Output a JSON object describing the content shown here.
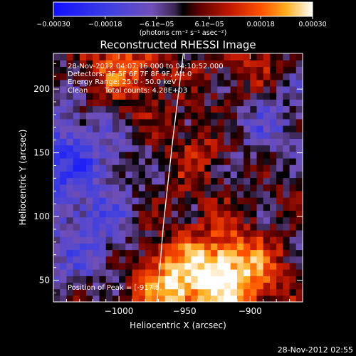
{
  "chart_data": {
    "type": "heatmap",
    "title": "Reconstructed RHESSI Image",
    "xlabel": "Heliocentric X (arcsec)",
    "ylabel": "Heliocentric Y (arcsec)",
    "xlim": [
      -1050,
      -860
    ],
    "ylim": [
      33,
      228
    ],
    "x_ticks": [
      -1000,
      -950,
      -900
    ],
    "x_tick_labels": [
      "−1000",
      "−950",
      "−900"
    ],
    "y_ticks": [
      50,
      100,
      150,
      200
    ],
    "y_tick_labels": [
      "50",
      "100",
      "150",
      "200"
    ],
    "colorbar": {
      "colormap": "hot-blue-purple",
      "range": [
        -0.0003,
        0.0003
      ],
      "ticks": [
        -0.0003,
        -0.00018,
        -6.1e-05,
        6.1e-05,
        0.00018,
        0.0003
      ],
      "tick_labels": [
        "−0.00030",
        "−0.00018",
        "−6.1e−05",
        "6.1e−05",
        "0.00018",
        "0.00030"
      ],
      "unit_label": "(photons cm⁻² s⁻¹ asec⁻²)",
      "stops": [
        {
          "v": 0.0,
          "color": "#1010ff"
        },
        {
          "v": 0.22,
          "color": "#4040e0"
        },
        {
          "v": 0.38,
          "color": "#7050b8"
        },
        {
          "v": 0.47,
          "color": "#3a2650"
        },
        {
          "v": 0.5,
          "color": "#000000"
        },
        {
          "v": 0.56,
          "color": "#5a0000"
        },
        {
          "v": 0.68,
          "color": "#c01800"
        },
        {
          "v": 0.8,
          "color": "#ff5000"
        },
        {
          "v": 0.9,
          "color": "#ffb020"
        },
        {
          "v": 1.0,
          "color": "#ffffff"
        }
      ]
    },
    "annotations": {
      "time_range": "28-Nov-2012 04:07:16.000 to 04:10:52.000",
      "detectors": "Detectors: 3F 5F 6F 7F 8F 9F, Att 0",
      "energy": "Energy Range: 25.0 - 50.0 keV",
      "algorithm": "Clean",
      "counts": "Total counts: 4.28E+03",
      "peak": "Position of Peak = [-917.5,"
    },
    "limb_line": [
      {
        "x": -971,
        "y": 33
      },
      {
        "x": -966,
        "y": 95
      },
      {
        "x": -959,
        "y": 160
      },
      {
        "x": -951,
        "y": 228
      }
    ],
    "sources": [
      {
        "x": -916,
        "y": 55,
        "amp": 0.0003
      },
      {
        "x": -963,
        "y": 46,
        "amp": 0.00022
      },
      {
        "x": -998,
        "y": 215,
        "amp": 0.00016
      },
      {
        "x": -935,
        "y": 150,
        "amp": 0.00012
      },
      {
        "x": -905,
        "y": 215,
        "amp": 0.0001
      },
      {
        "x": -870,
        "y": 140,
        "amp": 8e-05
      }
    ],
    "negative_regions": [
      {
        "x": -1040,
        "y": 150,
        "amp": -0.00016
      },
      {
        "x": -890,
        "y": 165,
        "amp": -0.00014
      },
      {
        "x": -1025,
        "y": 80,
        "amp": -0.0001
      }
    ]
  },
  "footer": {
    "timestamp": "28-Nov-2012 02:55"
  }
}
